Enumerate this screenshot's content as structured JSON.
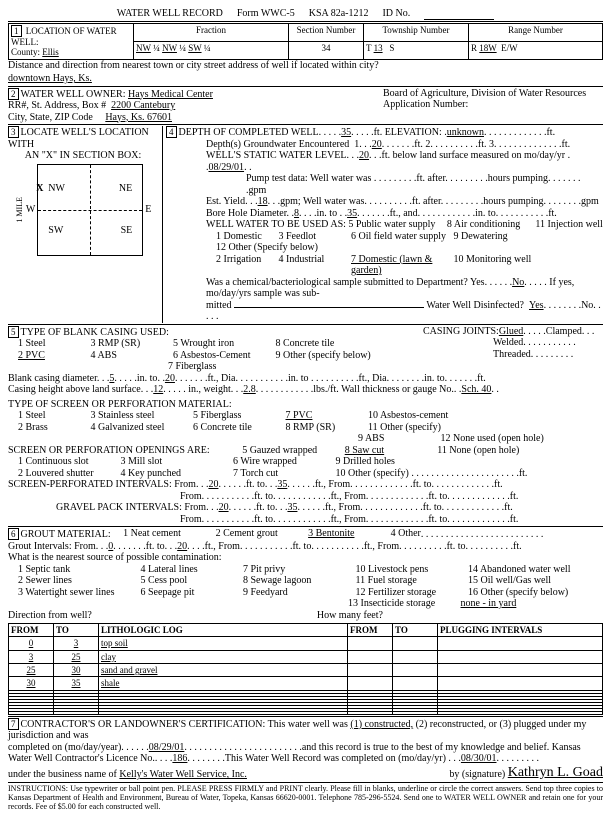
{
  "header": {
    "title": "WATER WELL RECORD",
    "form": "Form WWC-5",
    "ksa": "KSA 82a-1212",
    "idno_label": "ID No."
  },
  "loc": {
    "county_label": "County:",
    "county": "Ellis",
    "fraction_label": "Fraction",
    "f1": "NW",
    "q1": "¼",
    "f2": "NW",
    "q2": "¼",
    "f3": "SW",
    "q3": "¼",
    "section_label": "Section Number",
    "section": "34",
    "township_label": "Township Number",
    "township_t": "T",
    "township": "13",
    "township_s": "S",
    "range_label": "Range Number",
    "range_r": "R",
    "range": "18W",
    "range_ew": "E/W",
    "distance_label": "Distance and direction from nearest town or city street address of well if located within city?",
    "distance": "downtown Hays, Ks."
  },
  "owner": {
    "label": "WATER WELL OWNER:",
    "name": "Hays Medical Center",
    "addr_label": "RR#, St. Address, Box #",
    "addr": "2200 Cantebury",
    "city_label": "City, State, ZIP Code",
    "city": "Hays, Ks. 67601",
    "board": "Board of Agriculture, Division of Water Resources",
    "appno": "Application Number:"
  },
  "sec3": {
    "label": "LOCATE WELL'S LOCATION WITH",
    "sub": "AN \"X\" IN SECTION BOX:",
    "nw": "NW",
    "ne": "NE",
    "sw": "SW",
    "se": "SE",
    "w": "W",
    "e": "E",
    "n": "N",
    "s": "S"
  },
  "sec4": {
    "label": "DEPTH OF COMPLETED WELL",
    "depth": "35",
    "ft": "ft.",
    "elev_label": "ELEVATION:",
    "elev": "unknown",
    "gw_label": "Depth(s) Groundwater Encountered",
    "gw1": "1",
    "gw2": "20",
    "gw3": "2",
    "gw4": "3",
    "static_label": "WELL'S STATIC WATER LEVEL",
    "static": "20",
    "static_tail": "ft. below land surface measured on mo/day/yr",
    "static_date": "08/29/01",
    "pump_label": "Pump test data: Well water was",
    "pump_after": "ft. after",
    "pump_hours": "hours pumping",
    "gpm": "gpm",
    "estyield_label": "Est. Yield",
    "estyield": "18",
    "estyield_gpm": "gpm; Well water was",
    "bore_label": "Bore Hole Diameter",
    "bore1": "8",
    "bore_into": "in. to",
    "bore2": "35",
    "bore_ftand": "ft., and",
    "bore_in_to": "in. to",
    "use_label": "WELL WATER TO BE USED AS:",
    "u1": "1 Domestic",
    "u2": "2 Irrigation",
    "u3": "3 Feedlot",
    "u4": "4 Industrial",
    "u5": "5 Public water supply",
    "u6": "6 Oil field water supply",
    "u7": "7 Domestic (lawn & garden)",
    "u8": "8 Air conditioning",
    "u9": "9 Dewatering",
    "u10": "10 Monitoring well",
    "u11": "11 Injection well",
    "u12": "12 Other (Specify below)",
    "chem_label": "Was a chemical/bacteriological sample submitted to Department? Yes",
    "chem_no": "No",
    "chem_tail": "If yes, mo/day/yrs sample was sub-",
    "chem_mitted": "mitted",
    "disinfect": "Water Well Disinfected?",
    "yes": "Yes",
    "no": "No"
  },
  "sec5": {
    "label": "TYPE OF BLANK CASING USED:",
    "c1": "1 Steel",
    "c2": "2 PVC",
    "c3": "3 RMP (SR)",
    "c4": "4 ABS",
    "c5": "5 Wrought iron",
    "c6": "6 Asbestos-Cement",
    "c7": "7 Fiberglass",
    "c8": "8 Concrete tile",
    "c9": "9 Other (specify below)",
    "joints_label": "CASING JOINTS:",
    "glued": "Glued",
    "clamped": "Clamped",
    "welded": "Welded",
    "threaded": "Threaded",
    "bcd_label": "Blank casing diameter",
    "bcd": "5",
    "bcd_into": "in. to",
    "bcd_to": "20",
    "bcd_ftdia": "ft., Dia",
    "bcd_in": "in. to",
    "bcd_ft": "ft., Dia",
    "bcd_in2": "in. to",
    "bcd_ft2": "ft.",
    "ch_label": "Casing height above land surface",
    "ch": "12",
    "ch_in": "in., weight",
    "ch_w": "2.8",
    "ch_tail": "lbs./ft. Wall thickness or gauge No.",
    "ch_sch": "Sch. 40",
    "perf_label": "TYPE OF SCREEN OR PERFORATION MATERIAL:",
    "p1": "1 Steel",
    "p2": "2 Brass",
    "p3": "3 Stainless steel",
    "p4": "4 Galvanized steel",
    "p5": "5 Fiberglass",
    "p6": "6 Concrete tile",
    "p7": "7 PVC",
    "p8": "8 RMP (SR)",
    "p9": "9 ABS",
    "p10": "10 Asbestos-cement",
    "p11": "11 Other (specify)",
    "p12": "12 None used (open hole)",
    "open_label": "SCREEN OR PERFORATION OPENINGS ARE:",
    "o1": "1 Continuous slot",
    "o2": "2 Louvered shutter",
    "o3": "3 Mill slot",
    "o4": "4 Key punched",
    "o5": "5 Gauzed wrapped",
    "o6": "6 Wire wrapped",
    "o7": "7 Torch cut",
    "o8": "8 Saw cut",
    "o9": "9 Drilled holes",
    "o10": "10 Other (specify)",
    "o11": "11 None (open hole)",
    "si_label": "SCREEN-PERFORATED INTERVALS: From",
    "si_f1": "20",
    "si_to": "ft. to",
    "si_t1": "35",
    "si_ft": "ft., From",
    "si_ftto": "ft. to",
    "si_ft2": "ft.",
    "gp_label": "GRAVEL PACK INTERVALS: From",
    "gp_f1": "20",
    "gp_t1": "35"
  },
  "sec6": {
    "label": "GROUT MATERIAL:",
    "g1": "1 Neat cement",
    "g2": "2 Cement grout",
    "g3": "3 Bentonite",
    "g4": "4 Other",
    "gi_label": "Grout Intervals: From",
    "gi_f": "0",
    "gi_to": "ft. to",
    "gi_t": "20",
    "gi_ft": "ft., From",
    "near_label": "What is the nearest source of possible contamination:",
    "n1": "1 Septic tank",
    "n2": "2 Sewer lines",
    "n3": "3 Watertight sewer lines",
    "n4": "4 Lateral lines",
    "n5": "5 Cess pool",
    "n6": "6 Seepage pit",
    "n7": "7 Pit privy",
    "n8": "8 Sewage lagoon",
    "n9": "9 Feedyard",
    "n10": "10 Livestock pens",
    "n11": "11 Fuel storage",
    "n12": "12 Fertilizer storage",
    "n13": "13 Insecticide storage",
    "n14": "14 Abandoned water well",
    "n15": "15 Oil well/Gas well",
    "n16": "16 Other (specify below)",
    "n_answer": "none - in yard",
    "dir_label": "Direction from well?",
    "howmany": "How many feet?"
  },
  "log": {
    "h_from": "FROM",
    "h_to": "TO",
    "h_lith": "LITHOLOGIC LOG",
    "h_plug": "PLUGGING INTERVALS",
    "rows": [
      {
        "from": "0",
        "to": "3",
        "lith": "top soil"
      },
      {
        "from": "3",
        "to": "25",
        "lith": "clay"
      },
      {
        "from": "25",
        "to": "30",
        "lith": "sand and gravel"
      },
      {
        "from": "30",
        "to": "35",
        "lith": "shale"
      }
    ]
  },
  "sec7": {
    "label": "CONTRACTOR'S OR LANDOWNER'S CERTIFICATION: This water well was",
    "opt1": "(1) constructed,",
    "opt2": "(2) reconstructed, or",
    "opt3": "(3) plugged under my jurisdiction and was",
    "compl_label": "completed on (mo/day/year)",
    "compl": "08/29/01",
    "compl_tail": "and this record is true to the best of my knowledge and belief. Kansas",
    "lic_label": "Water Well Contractor's Licence No.",
    "lic": "186",
    "lic_tail": "This Water Well Record was completed on (mo/day/yr)",
    "lic_date": "08/30/01",
    "bus_label": "under the business name of",
    "bus": "Kelly's Water Well Service, Inc.",
    "sig_label": "by (signature)",
    "sig": "Kathryn L. Goad"
  },
  "footer": "INSTRUCTIONS: Use typewriter or ball point pen. PLEASE PRESS FIRMLY and PRINT clearly. Please fill in blanks, underline or circle the correct answers. Send top three copies to Kansas Department of Health and Environment, Bureau of Water, Topeka, Kansas 66620-0001. Telephone 785-296-5524. Send one to WATER WELL OWNER and retain one for your records. Fee of $5.00 for each constructed well."
}
